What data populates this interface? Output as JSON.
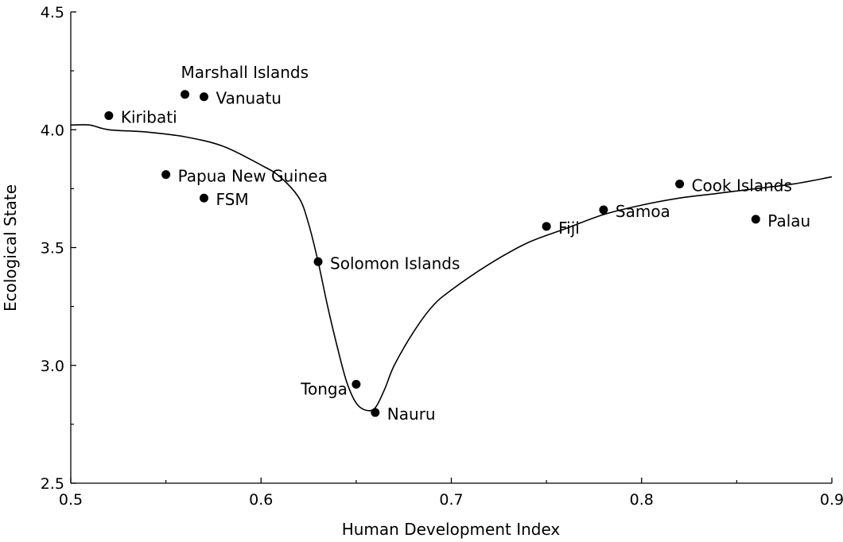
{
  "chart_data": {
    "type": "scatter",
    "title": "",
    "xlabel": "Human Development Index",
    "ylabel": "Ecological State",
    "xlim": [
      0.5,
      0.9
    ],
    "ylim": [
      2.5,
      4.5
    ],
    "xticks": [
      0.5,
      0.6,
      0.7,
      0.8,
      0.9
    ],
    "xtick_labels": [
      "0.5",
      "0.6",
      "0.7",
      "0.8",
      "0.9"
    ],
    "yticks": [
      2.5,
      3.0,
      3.5,
      4.0,
      4.5
    ],
    "ytick_labels": [
      "2.5",
      "3.0",
      "3.5",
      "4.0",
      "4.5"
    ],
    "grid": false,
    "points": [
      {
        "label": "Kiribati",
        "x": 0.52,
        "y": 4.06
      },
      {
        "label": "Marshall Islands",
        "x": 0.56,
        "y": 4.15
      },
      {
        "label": "Vanuatu",
        "x": 0.57,
        "y": 4.14
      },
      {
        "label": "Papua New Guinea",
        "x": 0.55,
        "y": 3.81
      },
      {
        "label": "FSM",
        "x": 0.57,
        "y": 3.71
      },
      {
        "label": "Solomon Islands",
        "x": 0.63,
        "y": 3.44
      },
      {
        "label": "Tonga",
        "x": 0.65,
        "y": 2.92
      },
      {
        "label": "Nauru",
        "x": 0.66,
        "y": 2.8
      },
      {
        "label": "Fiji",
        "x": 0.75,
        "y": 3.59
      },
      {
        "label": "Samoa",
        "x": 0.78,
        "y": 3.66
      },
      {
        "label": "Cook Islands",
        "x": 0.82,
        "y": 3.77
      },
      {
        "label": "Palau",
        "x": 0.86,
        "y": 3.62
      }
    ],
    "trend_curve": {
      "x": [
        0.5,
        0.51,
        0.52,
        0.54,
        0.56,
        0.58,
        0.6,
        0.61,
        0.62,
        0.625,
        0.63,
        0.635,
        0.64,
        0.645,
        0.65,
        0.655,
        0.66,
        0.665,
        0.67,
        0.68,
        0.69,
        0.7,
        0.72,
        0.74,
        0.76,
        0.78,
        0.8,
        0.82,
        0.84,
        0.86,
        0.88,
        0.9
      ],
      "y": [
        4.02,
        4.02,
        4.0,
        3.99,
        3.97,
        3.93,
        3.85,
        3.8,
        3.71,
        3.6,
        3.44,
        3.25,
        3.08,
        2.93,
        2.84,
        2.81,
        2.82,
        2.9,
        3.0,
        3.14,
        3.25,
        3.32,
        3.43,
        3.52,
        3.58,
        3.64,
        3.68,
        3.71,
        3.73,
        3.75,
        3.77,
        3.8
      ]
    }
  }
}
